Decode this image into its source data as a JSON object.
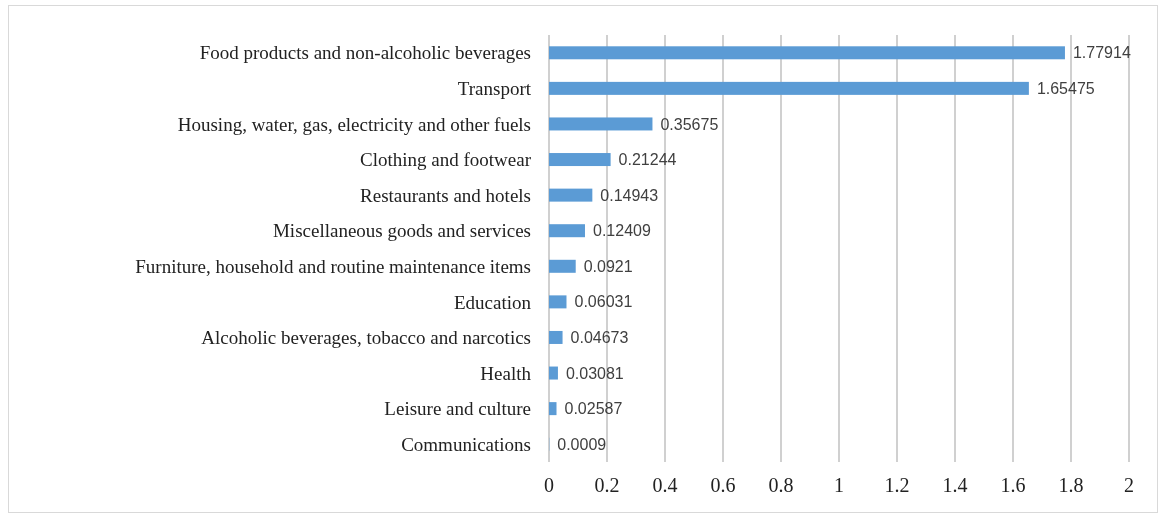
{
  "chart_data": {
    "type": "bar",
    "orientation": "horizontal",
    "categories": [
      "Food products and non-alcoholic beverages",
      "Transport",
      "Housing, water, gas, electricity and other fuels",
      "Clothing and footwear",
      "Restaurants and hotels",
      "Miscellaneous goods and services",
      "Furniture, household and routine maintenance items",
      "Education",
      "Alcoholic beverages, tobacco and narcotics",
      "Health",
      "Leisure and culture",
      "Communications"
    ],
    "values": [
      1.77914,
      1.65475,
      0.35675,
      0.21244,
      0.14943,
      0.12409,
      0.0921,
      0.06031,
      0.04673,
      0.03081,
      0.02587,
      0.0009
    ],
    "color": "#5b9bd5",
    "xlim": [
      0,
      2
    ],
    "xticks": [
      0,
      {
        "value": 0.2,
        "label": "0.2"
      },
      {
        "value": 0.4,
        "label": "0.4"
      },
      {
        "value": 0.6,
        "label": "0.6"
      },
      {
        "value": 0.8,
        "label": "0.8"
      },
      1,
      {
        "value": 1.2,
        "label": "1.2"
      },
      {
        "value": 1.4,
        "label": "1.4"
      },
      {
        "value": 1.6,
        "label": "1.6"
      },
      {
        "value": 1.8,
        "label": "1.8"
      },
      2
    ],
    "grid": "x",
    "data_labels": true
  }
}
